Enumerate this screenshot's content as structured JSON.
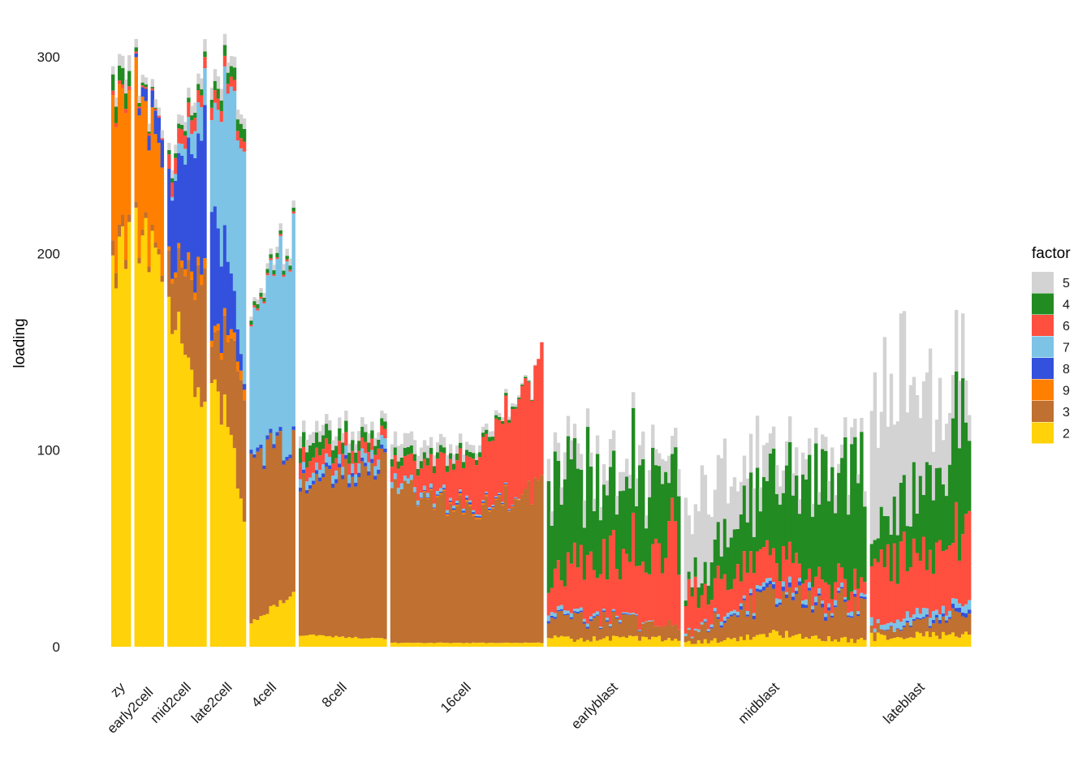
{
  "chart_data": {
    "type": "bar",
    "stacked": true,
    "xlabel": "",
    "ylabel": "loading",
    "ylim": [
      0,
      310
    ],
    "yticks": [
      0,
      100,
      200,
      300
    ],
    "grid": false,
    "legend": {
      "title": "factor",
      "placement": "right"
    },
    "factor_order": [
      "5",
      "4",
      "6",
      "7",
      "8",
      "9",
      "3",
      "2"
    ],
    "colors": {
      "5": "#d3d3d3",
      "4": "#228b22",
      "6": "#ff4f3f",
      "7": "#7cc3e6",
      "8": "#3351dc",
      "9": "#ff7f00",
      "3": "#c07030",
      "2": "#ffd20a"
    },
    "groups": [
      {
        "name": "zy",
        "profiles": [
          {
            "2": 193,
            "3": 8,
            "9": 72,
            "8": 0,
            "7": 0,
            "6": 2,
            "4": 8,
            "5": 4
          },
          {
            "2": 203,
            "3": 4,
            "9": 68,
            "8": 0,
            "7": 0,
            "6": 2,
            "4": 8,
            "5": 8
          }
        ]
      },
      {
        "name": "early2cell",
        "profiles": [
          {
            "2": 204,
            "3": 3,
            "9": 70,
            "8": 2,
            "7": 0,
            "6": 1,
            "4": 2,
            "5": 4
          },
          {
            "2": 194,
            "3": 3,
            "9": 50,
            "8": 14,
            "7": 0,
            "6": 1,
            "4": 0,
            "5": 4
          }
        ]
      },
      {
        "name": "mid2cell",
        "profiles": [
          {
            "2": 172,
            "3": 22,
            "9": 2,
            "8": 38,
            "7": 0,
            "6": 8,
            "4": 2,
            "5": 4
          },
          {
            "2": 124,
            "3": 65,
            "9": 5,
            "8": 75,
            "7": 18,
            "6": 6,
            "4": 3,
            "5": 6
          }
        ]
      },
      {
        "name": "late2cell",
        "profiles": [
          {
            "2": 148,
            "3": 20,
            "9": 3,
            "8": 66,
            "7": 48,
            "6": 6,
            "4": 4,
            "5": 6
          },
          {
            "2": 70,
            "3": 65,
            "9": 5,
            "8": 3,
            "7": 115,
            "6": 5,
            "4": 7,
            "5": 5
          }
        ]
      },
      {
        "name": "4cell",
        "profiles": [
          {
            "2": 12,
            "3": 84,
            "9": 0,
            "8": 2,
            "7": 65,
            "6": 1,
            "4": 2,
            "5": 2
          },
          {
            "2": 28,
            "3": 76,
            "9": 0,
            "8": 2,
            "7": 104,
            "6": 1,
            "4": 2,
            "5": 4
          }
        ]
      },
      {
        "name": "8cell",
        "profiles": [
          {
            "2": 6,
            "3": 78,
            "9": 0,
            "8": 2,
            "7": 4,
            "6": 8,
            "4": 8,
            "5": 6
          },
          {
            "2": 4,
            "3": 88,
            "9": 0,
            "8": 2,
            "7": 5,
            "6": 5,
            "4": 4,
            "5": 4
          }
        ]
      },
      {
        "name": "16cell",
        "profiles": [
          {
            "2": 2,
            "3": 80,
            "9": 0,
            "8": 0,
            "7": 3,
            "6": 8,
            "4": 4,
            "5": 8
          },
          {
            "2": 2,
            "3": 68,
            "9": 1,
            "8": 1,
            "7": 1,
            "6": 22,
            "4": 3,
            "5": 4
          },
          {
            "2": 2,
            "3": 78,
            "9": 0,
            "8": 0,
            "7": 0,
            "6": 62,
            "4": 0,
            "5": 0
          }
        ]
      },
      {
        "name": "earlyblast",
        "profiles": [
          {
            "2": 4,
            "3": 12,
            "9": 0,
            "8": 1,
            "7": 2,
            "6": 18,
            "4": 55,
            "5": 10
          },
          {
            "2": 4,
            "3": 6,
            "9": 0,
            "8": 0,
            "7": 0,
            "6": 48,
            "4": 30,
            "5": 10
          }
        ]
      },
      {
        "name": "midblast",
        "profiles": [
          {
            "2": 2,
            "3": 4,
            "9": 0,
            "8": 0,
            "7": 1,
            "6": 20,
            "4": 4,
            "5": 50
          },
          {
            "2": 6,
            "3": 20,
            "9": 0,
            "8": 2,
            "7": 2,
            "6": 15,
            "4": 40,
            "5": 12
          },
          {
            "2": 3,
            "3": 18,
            "9": 0,
            "8": 1,
            "7": 2,
            "6": 8,
            "4": 58,
            "5": 6
          }
        ]
      },
      {
        "name": "lateblast",
        "profiles": [
          {
            "2": 5,
            "3": 3,
            "9": 0,
            "8": 0,
            "7": 3,
            "6": 30,
            "4": 12,
            "5": 80
          },
          {
            "2": 6,
            "3": 10,
            "9": 0,
            "8": 2,
            "7": 4,
            "6": 35,
            "4": 60,
            "5": 20
          }
        ]
      }
    ]
  }
}
